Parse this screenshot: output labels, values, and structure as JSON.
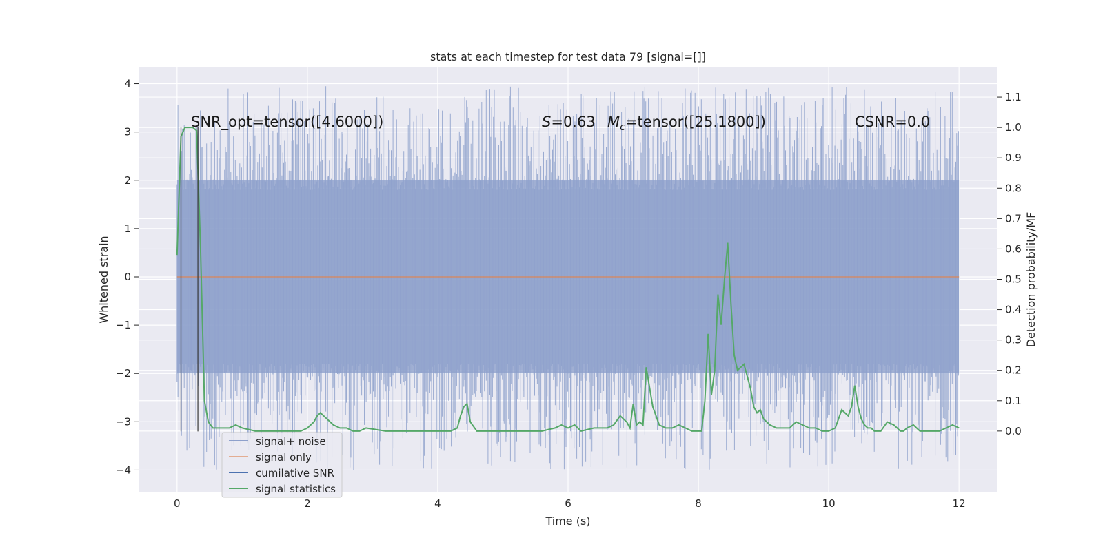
{
  "chart_data": {
    "type": "line",
    "title": "stats at each timestep for test data 79 [signal=[]]",
    "xlabel": "Time (s)",
    "ylabel": "Whitened strain",
    "ylabel_right": "Detection probability/MF",
    "xlim": [
      -0.58,
      12.58
    ],
    "ylim": [
      -4.45,
      4.35
    ],
    "ylim_right": [
      -0.2,
      1.2
    ],
    "x_ticks": [
      0,
      2,
      4,
      6,
      8,
      10,
      12
    ],
    "y_ticks": [
      -4,
      -3,
      -2,
      -1,
      0,
      1,
      2,
      3,
      4
    ],
    "y_ticks_right": [
      0.0,
      0.1,
      0.2,
      0.3,
      0.4,
      0.5,
      0.6,
      0.7,
      0.8,
      0.9,
      1.0,
      1.1
    ],
    "grid": true,
    "annotations": {
      "snr_opt": "SNR_opt=tensor([4.6000])",
      "s_value": "=0.63",
      "s_symbol": "S",
      "mc_symbol": "M",
      "mc_sub": "c",
      "mc_value": "=tensor([25.1800])",
      "csnr": "CSNR=0.0"
    },
    "vertical_markers_x": [
      0.06,
      0.32
    ],
    "legend": {
      "location": "lower-left",
      "entries": [
        {
          "label": "signal+ noise",
          "color": "#8da0cb"
        },
        {
          "label": "signal only",
          "color": "#dd8452"
        },
        {
          "label": "cumilative SNR",
          "color": "#4c72b0"
        },
        {
          "label": "signal statistics",
          "color": "#55a868"
        }
      ]
    },
    "series": [
      {
        "name": "signal+ noise",
        "style": "noise-band",
        "color": "#8da0cb",
        "x_range": [
          0,
          12
        ],
        "core_band": [
          -2.0,
          2.0
        ],
        "extreme_range": [
          -4.0,
          3.95
        ]
      },
      {
        "name": "signal only",
        "color": "#dd8452",
        "x": [
          0,
          12
        ],
        "y": [
          0,
          0
        ]
      },
      {
        "name": "signal statistics",
        "color": "#55a868",
        "axis": "right",
        "x": [
          0.0,
          0.06,
          0.12,
          0.18,
          0.24,
          0.3,
          0.36,
          0.42,
          0.48,
          0.55,
          0.65,
          0.8,
          0.9,
          1.0,
          1.2,
          1.5,
          1.8,
          1.9,
          2.0,
          2.1,
          2.15,
          2.2,
          2.3,
          2.4,
          2.5,
          2.6,
          2.7,
          2.8,
          2.9,
          3.2,
          3.5,
          3.8,
          4.0,
          4.2,
          4.3,
          4.35,
          4.4,
          4.45,
          4.5,
          4.6,
          4.8,
          5.0,
          5.2,
          5.4,
          5.6,
          5.8,
          5.9,
          6.0,
          6.1,
          6.2,
          6.4,
          6.6,
          6.7,
          6.8,
          6.9,
          6.95,
          7.0,
          7.05,
          7.1,
          7.15,
          7.2,
          7.3,
          7.4,
          7.5,
          7.6,
          7.7,
          7.8,
          7.9,
          7.95,
          8.0,
          8.05,
          8.1,
          8.15,
          8.2,
          8.25,
          8.3,
          8.35,
          8.4,
          8.45,
          8.5,
          8.55,
          8.6,
          8.65,
          8.7,
          8.75,
          8.8,
          8.85,
          8.9,
          8.95,
          9.0,
          9.1,
          9.2,
          9.3,
          9.4,
          9.5,
          9.6,
          9.7,
          9.8,
          9.9,
          10.0,
          10.1,
          10.2,
          10.3,
          10.35,
          10.4,
          10.45,
          10.5,
          10.55,
          10.6,
          10.65,
          10.7,
          10.8,
          10.9,
          11.0,
          11.05,
          11.1,
          11.15,
          11.2,
          11.3,
          11.4,
          11.5,
          11.6,
          11.7,
          11.8,
          11.9,
          12.0
        ],
        "y": [
          0.58,
          0.97,
          1.0,
          1.0,
          1.0,
          0.99,
          0.6,
          0.1,
          0.03,
          0.01,
          0.01,
          0.01,
          0.02,
          0.01,
          0.0,
          0.0,
          0.0,
          0.0,
          0.01,
          0.03,
          0.05,
          0.06,
          0.04,
          0.02,
          0.01,
          0.01,
          0.0,
          0.0,
          0.01,
          0.0,
          0.0,
          0.0,
          0.0,
          0.0,
          0.01,
          0.05,
          0.08,
          0.09,
          0.03,
          0.0,
          0.0,
          0.0,
          0.0,
          0.0,
          0.0,
          0.01,
          0.02,
          0.01,
          0.02,
          0.0,
          0.01,
          0.01,
          0.02,
          0.05,
          0.03,
          0.01,
          0.09,
          0.02,
          0.03,
          0.02,
          0.21,
          0.08,
          0.02,
          0.01,
          0.01,
          0.02,
          0.01,
          0.0,
          0.0,
          0.0,
          0.0,
          0.1,
          0.32,
          0.12,
          0.2,
          0.45,
          0.35,
          0.5,
          0.62,
          0.42,
          0.25,
          0.2,
          0.21,
          0.22,
          0.18,
          0.14,
          0.08,
          0.06,
          0.07,
          0.04,
          0.02,
          0.01,
          0.01,
          0.01,
          0.03,
          0.02,
          0.01,
          0.01,
          0.0,
          0.0,
          0.01,
          0.07,
          0.05,
          0.08,
          0.15,
          0.08,
          0.04,
          0.02,
          0.01,
          0.01,
          0.0,
          0.0,
          0.03,
          0.02,
          0.01,
          0.0,
          0.0,
          0.01,
          0.02,
          0.0,
          0.0,
          0.0,
          0.0,
          0.01,
          0.02,
          0.01
        ]
      }
    ]
  }
}
